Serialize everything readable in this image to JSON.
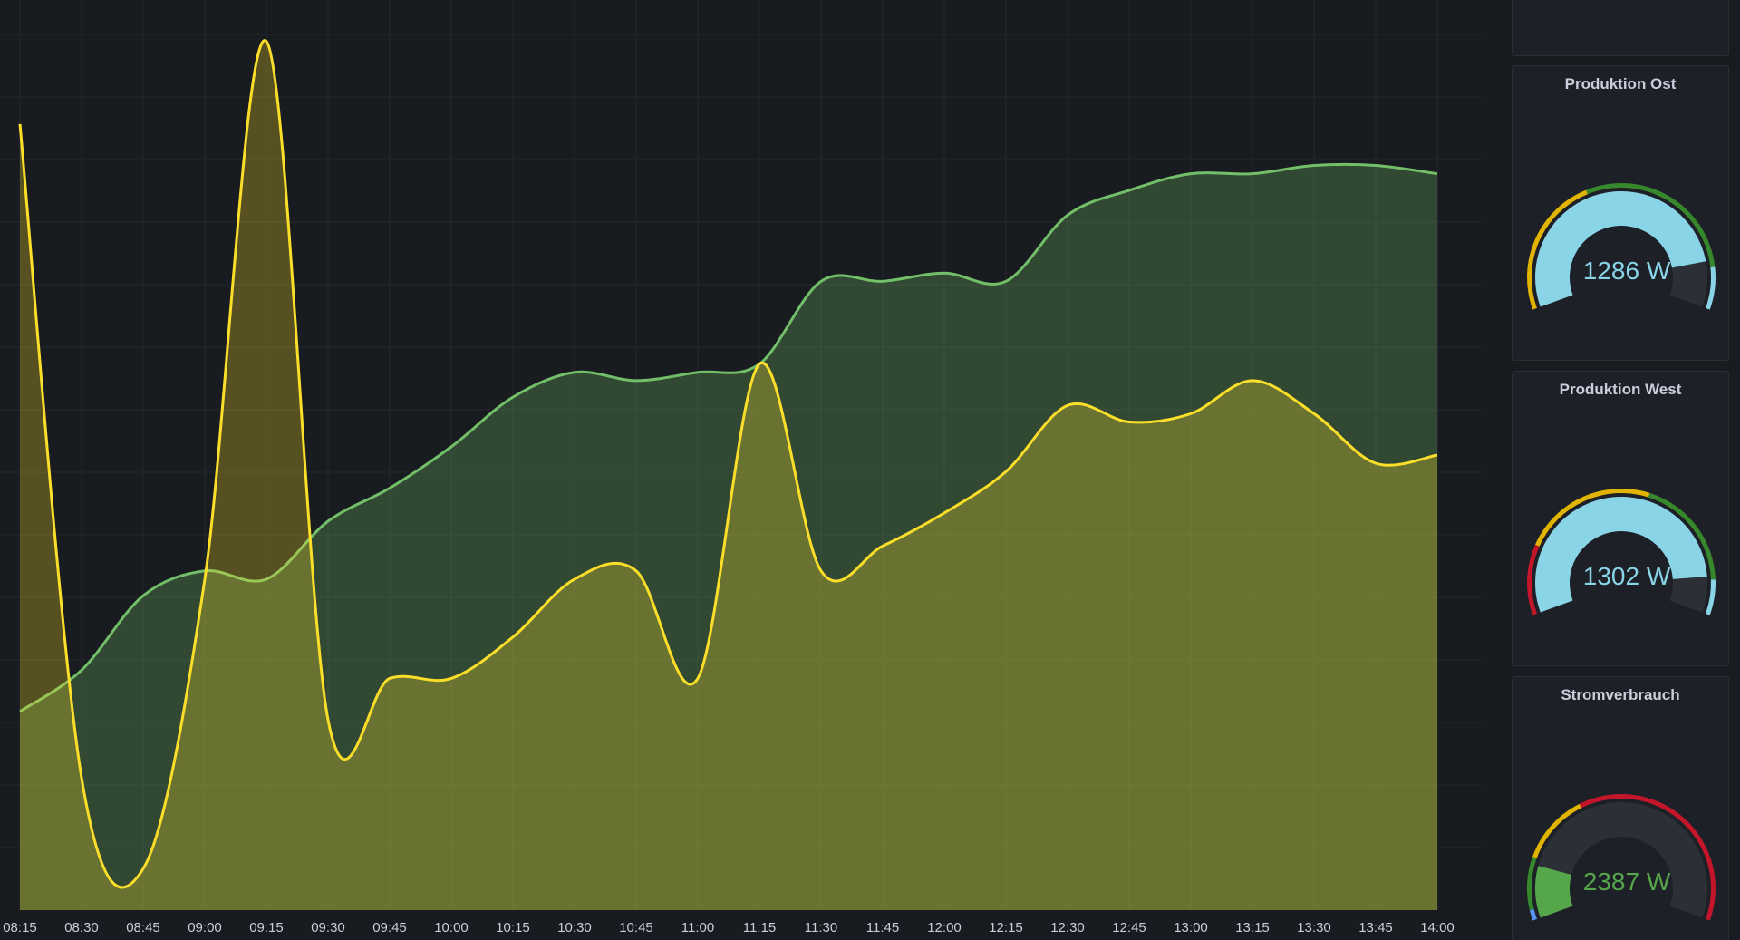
{
  "dashboard": {
    "chart_panel": {
      "series": [
        {
          "color": "#73bf69"
        },
        {
          "color": "#fade2a"
        }
      ]
    },
    "gauges": [
      {
        "title": "Produktion Ost",
        "value_text": "1286 W",
        "value_fraction": 0.86,
        "value_color": "#8ad4e8",
        "threshold_bands": [
          {
            "from": 0.0,
            "to": 0.4,
            "color": "#e0b400"
          },
          {
            "from": 0.4,
            "to": 0.88,
            "color": "#37872d"
          },
          {
            "from": 0.88,
            "to": 1.0,
            "color": "#8ad4e8"
          }
        ]
      },
      {
        "title": "Produktion West",
        "value_text": "1302 W",
        "value_fraction": 0.89,
        "value_color": "#8ad4e8",
        "threshold_bands": [
          {
            "from": 0.0,
            "to": 0.2,
            "color": "#c4162a"
          },
          {
            "from": 0.2,
            "to": 0.58,
            "color": "#e0b400"
          },
          {
            "from": 0.58,
            "to": 0.9,
            "color": "#37872d"
          },
          {
            "from": 0.9,
            "to": 1.0,
            "color": "#8ad4e8"
          }
        ]
      },
      {
        "title": "Stromverbrauch",
        "value_text": "2387 W",
        "value_fraction": 0.16,
        "value_color": "#56a64b",
        "threshold_bands": [
          {
            "from": 0.0,
            "to": 0.03,
            "color": "#5794f2"
          },
          {
            "from": 0.03,
            "to": 0.18,
            "color": "#37872d"
          },
          {
            "from": 0.18,
            "to": 0.38,
            "color": "#e0b400"
          },
          {
            "from": 0.38,
            "to": 1.0,
            "color": "#c4162a"
          }
        ]
      }
    ]
  },
  "chart_data": {
    "type": "area",
    "xlabel": "",
    "ylabel": "",
    "x": [
      "08:15",
      "08:30",
      "08:45",
      "09:00",
      "09:15",
      "09:30",
      "09:45",
      "10:00",
      "10:15",
      "10:30",
      "10:45",
      "11:00",
      "11:15",
      "11:30",
      "11:45",
      "12:00",
      "12:15",
      "12:30",
      "12:45",
      "13:00",
      "13:15",
      "13:30",
      "13:45",
      "14:00"
    ],
    "series": [
      {
        "color": "#73bf69",
        "values": [
          0.24,
          0.29,
          0.38,
          0.41,
          0.4,
          0.47,
          0.51,
          0.56,
          0.62,
          0.65,
          0.64,
          0.65,
          0.66,
          0.76,
          0.76,
          0.77,
          0.76,
          0.84,
          0.87,
          0.89,
          0.89,
          0.9,
          0.9,
          0.89
        ]
      },
      {
        "color": "#fade2a",
        "values": [
          0.95,
          0.16,
          0.05,
          0.4,
          1.05,
          0.23,
          0.28,
          0.28,
          0.33,
          0.4,
          0.41,
          0.28,
          0.66,
          0.41,
          0.44,
          0.48,
          0.53,
          0.61,
          0.59,
          0.6,
          0.64,
          0.6,
          0.54,
          0.55
        ]
      }
    ],
    "ylim": [
      0,
      1.1
    ],
    "grid": true,
    "legend": "none"
  }
}
